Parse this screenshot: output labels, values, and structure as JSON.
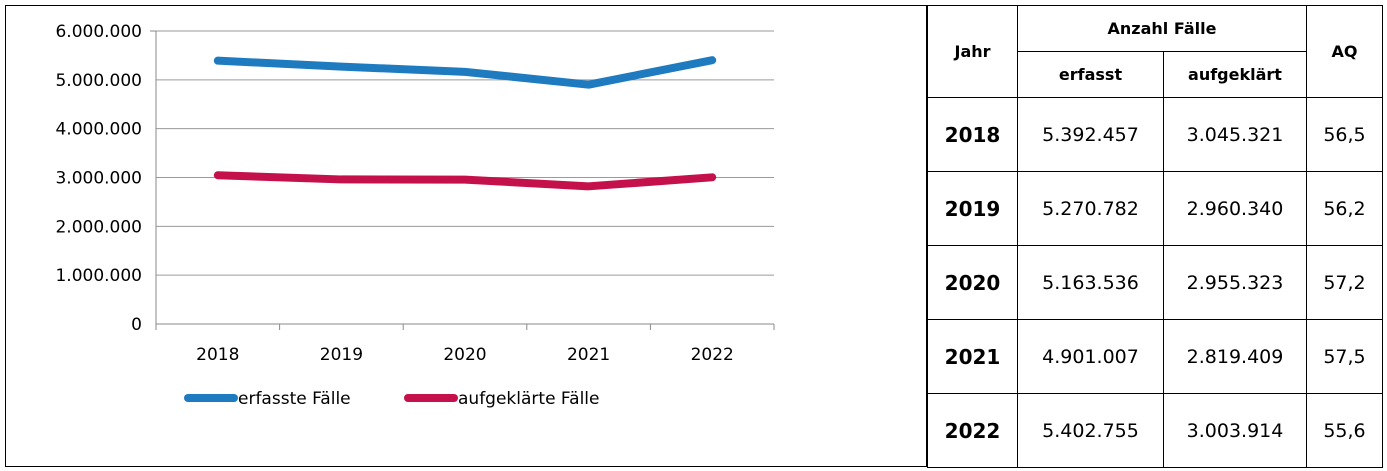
{
  "chart_data": {
    "type": "line",
    "categories": [
      "2018",
      "2019",
      "2020",
      "2021",
      "2022"
    ],
    "series": [
      {
        "name": "erfasste Fälle",
        "color": "#1f7bbf",
        "values": [
          5392457,
          5270782,
          5163536,
          4901007,
          5402755
        ]
      },
      {
        "name": "aufgeklärte Fälle",
        "color": "#c4114b",
        "values": [
          3045321,
          2960340,
          2955323,
          2819409,
          3003914
        ]
      }
    ],
    "ylim": [
      0,
      6000000
    ],
    "yticks": [
      0,
      1000000,
      2000000,
      3000000,
      4000000,
      5000000,
      6000000
    ],
    "ytick_labels": [
      "0",
      "1.000.000",
      "2.000.000",
      "3.000.000",
      "4.000.000",
      "5.000.000",
      "6.000.000"
    ],
    "grid": true,
    "legend_position": "bottom",
    "title": "",
    "xlabel": "",
    "ylabel": ""
  },
  "table": {
    "headers": {
      "jahr": "Jahr",
      "anzahl": "Anzahl Fälle",
      "erfasst": "erfasst",
      "aufgeklaert": "aufgeklärt",
      "aq": "AQ"
    },
    "rows": [
      {
        "jahr": "2018",
        "erfasst": "5.392.457",
        "aufgeklaert": "3.045.321",
        "aq": "56,5"
      },
      {
        "jahr": "2019",
        "erfasst": "5.270.782",
        "aufgeklaert": "2.960.340",
        "aq": "56,2"
      },
      {
        "jahr": "2020",
        "erfasst": "5.163.536",
        "aufgeklaert": "2.955.323",
        "aq": "57,2"
      },
      {
        "jahr": "2021",
        "erfasst": "4.901.007",
        "aufgeklaert": "2.819.409",
        "aq": "57,5"
      },
      {
        "jahr": "2022",
        "erfasst": "5.402.755",
        "aufgeklaert": "3.003.914",
        "aq": "55,6"
      }
    ]
  }
}
